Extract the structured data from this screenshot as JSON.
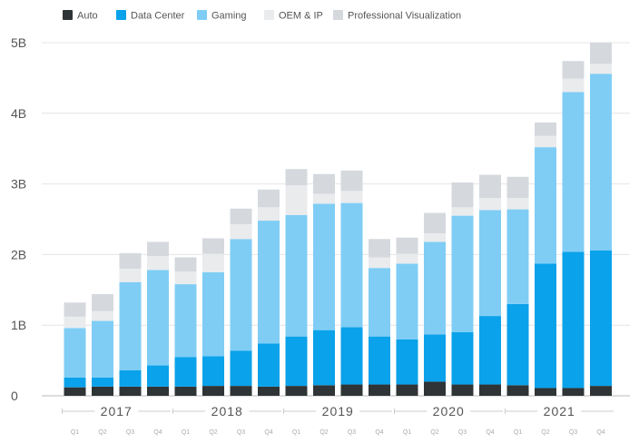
{
  "chart_data": {
    "type": "bar",
    "stacked": true,
    "title": "",
    "xlabel": "",
    "ylabel": "",
    "ylim": [
      0,
      5
    ],
    "y_ticks": [
      {
        "value": 0,
        "label": "0"
      },
      {
        "value": 1,
        "label": "1B"
      },
      {
        "value": 2,
        "label": "2B"
      },
      {
        "value": 3,
        "label": "3B"
      },
      {
        "value": 4,
        "label": "4B"
      },
      {
        "value": 5,
        "label": "5B"
      }
    ],
    "grid": true,
    "legend_position": "top-left",
    "years": [
      "2017",
      "2018",
      "2019",
      "2020",
      "2021"
    ],
    "quarters": [
      "Q1",
      "Q2",
      "Q3",
      "Q4"
    ],
    "categories": [
      "2017 Q1",
      "2017 Q2",
      "2017 Q3",
      "2017 Q4",
      "2018 Q1",
      "2018 Q2",
      "2018 Q3",
      "2018 Q4",
      "2019 Q1",
      "2019 Q2",
      "2019 Q3",
      "2019 Q4",
      "2020 Q1",
      "2020 Q2",
      "2020 Q3",
      "2020 Q4",
      "2021 Q1",
      "2021 Q2",
      "2021 Q3",
      "2021 Q4"
    ],
    "series": [
      {
        "name": "Auto",
        "color": "#2f3436",
        "values": [
          0.12,
          0.13,
          0.13,
          0.13,
          0.13,
          0.14,
          0.14,
          0.13,
          0.14,
          0.15,
          0.16,
          0.16,
          0.16,
          0.2,
          0.16,
          0.16,
          0.15,
          0.11,
          0.11,
          0.14
        ]
      },
      {
        "name": "Data Center",
        "color": "#0aa2ea",
        "values": [
          0.14,
          0.13,
          0.23,
          0.3,
          0.42,
          0.42,
          0.5,
          0.61,
          0.7,
          0.78,
          0.81,
          0.68,
          0.64,
          0.67,
          0.74,
          0.97,
          1.15,
          1.76,
          1.93,
          1.92
        ]
      },
      {
        "name": "Gaming",
        "color": "#7fcdf5",
        "values": [
          0.7,
          0.8,
          1.25,
          1.35,
          1.03,
          1.19,
          1.58,
          1.74,
          1.72,
          1.79,
          1.76,
          0.97,
          1.07,
          1.31,
          1.65,
          1.5,
          1.34,
          1.65,
          2.26,
          2.5
        ]
      },
      {
        "name": "OEM & IP",
        "color": "#e9ebed",
        "values": [
          0.16,
          0.14,
          0.19,
          0.2,
          0.18,
          0.26,
          0.21,
          0.19,
          0.42,
          0.14,
          0.17,
          0.15,
          0.14,
          0.12,
          0.12,
          0.17,
          0.16,
          0.16,
          0.19,
          0.14
        ]
      },
      {
        "name": "Professional Visualization",
        "color": "#d5d9de",
        "values": [
          0.2,
          0.24,
          0.22,
          0.2,
          0.2,
          0.22,
          0.22,
          0.25,
          0.23,
          0.28,
          0.29,
          0.26,
          0.23,
          0.29,
          0.35,
          0.33,
          0.3,
          0.19,
          0.25,
          0.3
        ]
      }
    ]
  }
}
